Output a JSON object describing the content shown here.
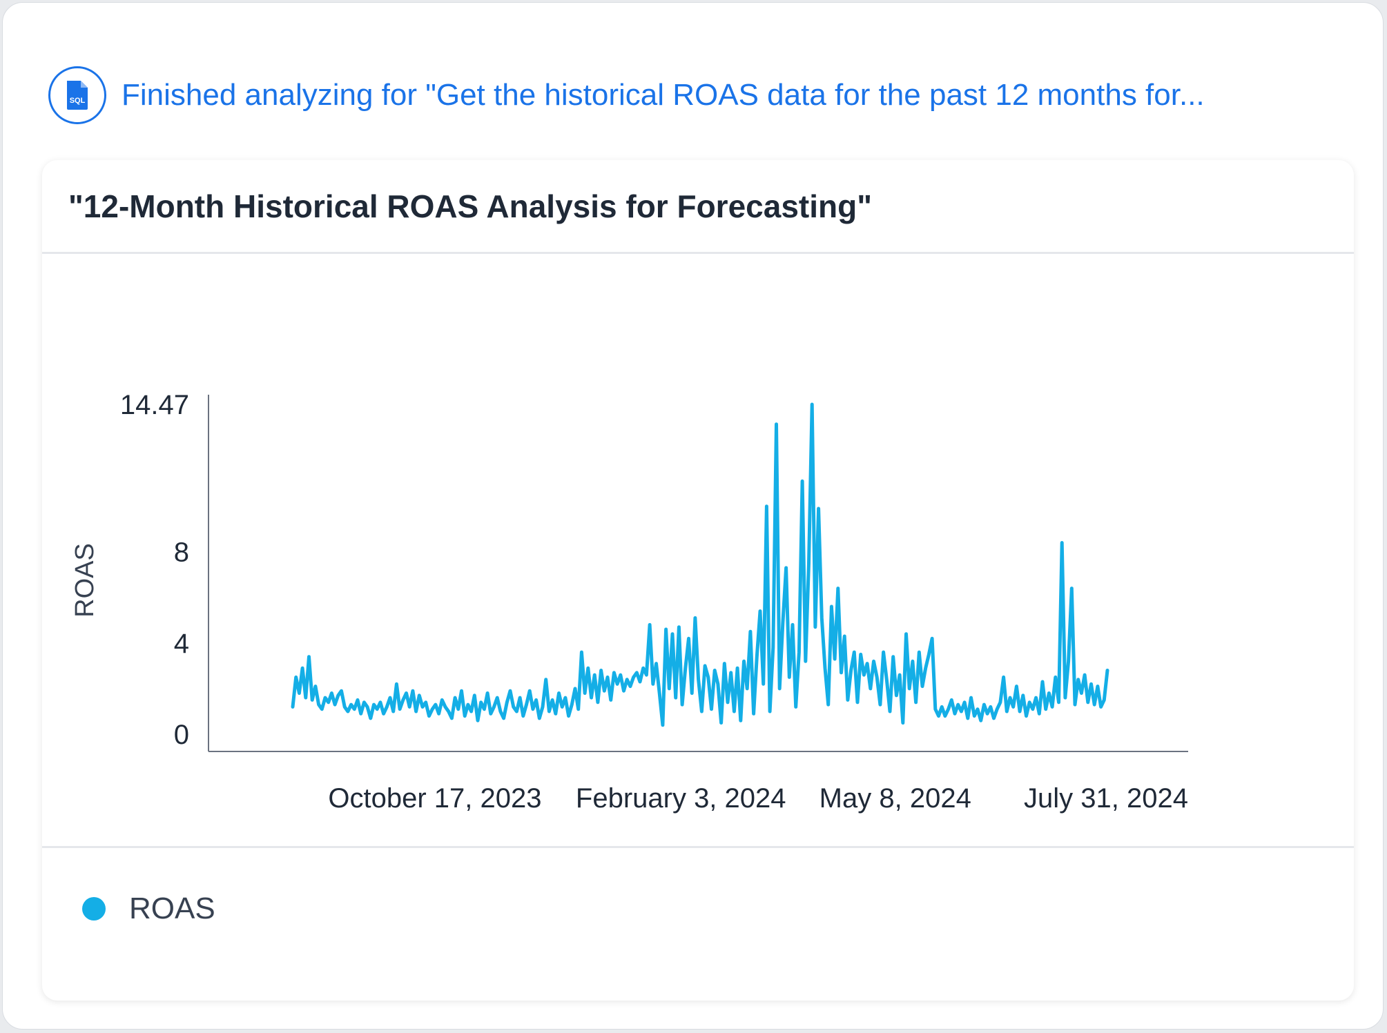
{
  "status": {
    "icon": "sql-file-icon",
    "text": "Finished analyzing for \"Get the historical ROAS data for the past 12 months for..."
  },
  "card": {
    "title": "\"12-Month Historical ROAS Analysis for Forecasting\""
  },
  "colors": {
    "accent": "#1a73e8",
    "series": "#14aee6",
    "axis": "#6b7280",
    "text": "#1f2937"
  },
  "chart_data": {
    "type": "line",
    "title": "\"12-Month Historical ROAS Analysis for Forecasting\"",
    "xlabel": "",
    "ylabel": "ROAS",
    "x_start": "2023-08-15",
    "x_end": "2024-08-10",
    "ylim": [
      0,
      14.47
    ],
    "y_ticks": [
      0,
      4,
      8,
      14.47
    ],
    "x_ticks": [
      {
        "date": "2023-10-17",
        "label": "October 17, 2023"
      },
      {
        "date": "2024-02-03",
        "label": "February 3, 2024"
      },
      {
        "date": "2024-05-08",
        "label": "May 8, 2024"
      },
      {
        "date": "2024-07-31",
        "label": "July 31, 2024"
      }
    ],
    "grid": false,
    "legend": "bottom-left",
    "series": [
      {
        "name": "ROAS",
        "color": "#14aee6",
        "values": [
          1.2,
          2.5,
          1.8,
          2.9,
          1.6,
          3.4,
          1.5,
          2.1,
          1.3,
          1.1,
          1.6,
          1.4,
          1.8,
          1.3,
          1.7,
          1.9,
          1.2,
          1.0,
          1.3,
          1.1,
          1.5,
          0.9,
          1.4,
          1.2,
          0.7,
          1.3,
          1.1,
          1.4,
          0.9,
          1.2,
          1.6,
          1.0,
          2.2,
          1.1,
          1.5,
          1.8,
          1.2,
          1.9,
          1.0,
          1.7,
          1.2,
          1.4,
          0.8,
          1.1,
          1.3,
          0.9,
          1.5,
          1.2,
          1.0,
          0.7,
          1.6,
          1.1,
          1.9,
          0.8,
          1.3,
          1.0,
          1.7,
          0.6,
          1.4,
          1.1,
          1.8,
          0.9,
          1.2,
          1.6,
          1.0,
          0.7,
          1.4,
          1.9,
          1.2,
          1.0,
          1.6,
          0.8,
          1.3,
          1.9,
          1.1,
          1.5,
          0.7,
          1.2,
          2.4,
          1.0,
          1.5,
          0.9,
          1.8,
          1.2,
          1.6,
          0.8,
          1.3,
          2.0,
          1.1,
          3.6,
          1.8,
          2.9,
          1.6,
          2.6,
          1.4,
          2.8,
          1.9,
          2.5,
          1.5,
          2.7,
          2.2,
          2.6,
          1.9,
          2.4,
          2.1,
          2.5,
          2.7,
          2.3,
          2.9,
          2.6,
          4.8,
          2.2,
          3.1,
          1.8,
          0.4,
          4.6,
          2.0,
          4.4,
          1.6,
          4.7,
          1.3,
          2.9,
          4.2,
          1.8,
          5.1,
          2.4,
          1.0,
          3.0,
          2.5,
          1.1,
          2.8,
          2.2,
          0.5,
          3.1,
          1.4,
          2.7,
          1.0,
          2.9,
          0.6,
          3.2,
          2.0,
          4.5,
          0.9,
          3.4,
          5.4,
          2.2,
          10.0,
          1.0,
          3.8,
          13.6,
          2.0,
          4.9,
          7.3,
          2.5,
          4.8,
          1.2,
          3.6,
          11.1,
          3.2,
          7.5,
          14.47,
          4.7,
          9.9,
          5.1,
          2.9,
          1.3,
          5.6,
          3.3,
          6.4,
          2.7,
          4.3,
          1.5,
          2.8,
          3.6,
          1.4,
          3.5,
          2.6,
          3.1,
          2.0,
          3.2,
          2.5,
          1.3,
          3.6,
          2.4,
          1.0,
          3.4,
          1.7,
          2.6,
          0.5,
          4.4,
          2.0,
          3.2,
          1.4,
          3.6,
          2.1,
          2.9,
          3.5,
          4.2,
          1.1,
          0.8,
          1.2,
          0.8,
          1.1,
          1.5,
          0.9,
          1.3,
          1.0,
          1.4,
          0.7,
          1.6,
          0.8,
          1.1,
          0.6,
          1.3,
          0.9,
          1.2,
          0.7,
          1.1,
          1.4,
          2.5,
          1.0,
          1.6,
          1.2,
          2.1,
          1.0,
          1.7,
          0.8,
          1.4,
          1.1,
          1.6,
          0.9,
          2.3,
          1.1,
          1.8,
          1.2,
          2.5,
          1.4,
          8.4,
          1.6,
          3.2,
          6.4,
          1.3,
          2.4,
          1.8,
          2.6,
          1.4,
          2.2,
          1.3,
          2.1,
          1.2,
          1.5,
          2.8
        ]
      }
    ]
  },
  "legend": {
    "items": [
      {
        "label": "ROAS",
        "color": "#14aee6"
      }
    ]
  }
}
